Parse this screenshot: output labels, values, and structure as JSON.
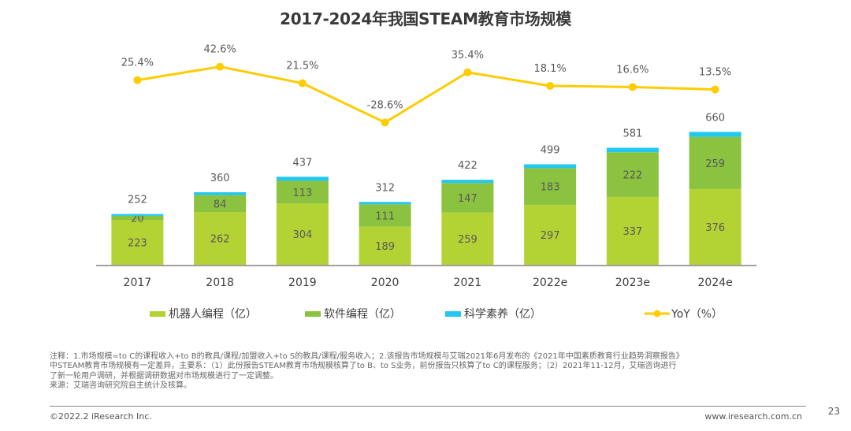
{
  "chart_data": {
    "type": "bar",
    "stacked": true,
    "title": "2017-2024年我国STEAM教育市场规模",
    "xlabel": "",
    "ylabel": "",
    "categories": [
      "2017",
      "2018",
      "2019",
      "2020",
      "2021",
      "2022e",
      "2023e",
      "2024e"
    ],
    "series": [
      {
        "name": "机器人编程（亿）",
        "color": "#b3d334",
        "values": [
          223,
          262,
          304,
          189,
          259,
          297,
          337,
          376
        ]
      },
      {
        "name": "软件编程（亿）",
        "color": "#8bc240",
        "values": [
          20,
          84,
          113,
          111,
          147,
          183,
          222,
          259
        ]
      },
      {
        "name": "科学素养（亿）",
        "color": "#22c8ef",
        "values": [
          9,
          14,
          20,
          12,
          16,
          19,
          22,
          25
        ]
      }
    ],
    "totals": [
      252,
      360,
      437,
      312,
      422,
      499,
      581,
      660
    ],
    "line_series": {
      "name": "YoY（%）",
      "color": "#ffcc00",
      "values": [
        25.4,
        42.6,
        21.5,
        -28.6,
        35.4,
        18.1,
        16.6,
        13.5
      ],
      "labels": [
        "25.4%",
        "42.6%",
        "21.5%",
        "-28.6%",
        "35.4%",
        "18.1%",
        "16.6%",
        "13.5%"
      ]
    },
    "legend_position": "bottom",
    "grid": false
  },
  "title": "2017-2024年我国STEAM教育市场规模",
  "legend": [
    {
      "label": "机器人编程（亿）",
      "color": "#b3d334",
      "kind": "bar"
    },
    {
      "label": "软件编程（亿）",
      "color": "#8bc240",
      "kind": "bar"
    },
    {
      "label": "科学素养（亿）",
      "color": "#22c8ef",
      "kind": "bar"
    },
    {
      "label": "YoY（%）",
      "color": "#ffcc00",
      "kind": "line"
    }
  ],
  "notes": [
    "注释：1.市场规模=to C的课程收入+to B的教具/课程/加盟收入+to S的教具/课程/服务收入；2.该报告市场规模与艾瑞2021年6月发布的《2021年中国素质教育行业趋势洞察报告》",
    "中STEAM教育市场规模有一定差异，主要系：（1）此份报告STEAM教育市场规模核算了to B、to S业务，前份报告只核算了to C的课程服务；（2）2021年11-12月，艾瑞咨询进行",
    "了新一轮用户调研，并根据调研数据对市场规模进行了一定调整。",
    "来源：艾瑞咨询研究院自主统计及核算。"
  ],
  "footer": {
    "copyright": "©2022.2 iResearch Inc.",
    "website": "www.iresearch.com.cn",
    "page_number": "23"
  }
}
